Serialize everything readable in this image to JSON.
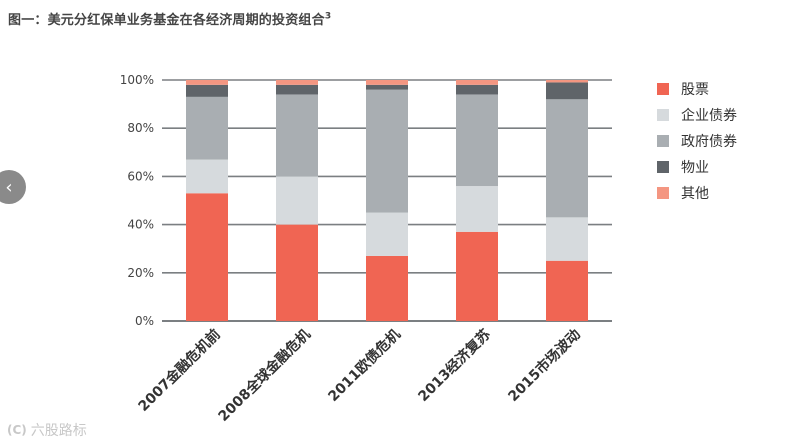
{
  "title": {
    "text": "图一：美元分红保单业务基金在各经济周期的投资组合",
    "sup": "3"
  },
  "colors": {
    "stocks": "#f06553",
    "corp_bonds": "#d6dadd",
    "gov_bonds": "#a9aeb2",
    "property": "#5f6469",
    "other": "#f49681",
    "gridline": "#7b7f82",
    "axis_text": "#444444"
  },
  "legend": [
    {
      "label": "股票",
      "color": "#f06553"
    },
    {
      "label": "企业债券",
      "color": "#d6dadd"
    },
    {
      "label": "政府债券",
      "color": "#a9aeb2"
    },
    {
      "label": "物业",
      "color": "#5f6469"
    },
    {
      "label": "其他",
      "color": "#f49681"
    }
  ],
  "nav": {
    "prev_icon": "‹"
  },
  "watermark": {
    "logo": "(C)",
    "text": "六股路标"
  },
  "chart_data": {
    "type": "bar",
    "stacked": true,
    "categories": [
      "2007金融危机前",
      "2008全球金融危机",
      "2011欧债危机",
      "2013经济复苏",
      "2015市场波动"
    ],
    "series": [
      {
        "name": "股票",
        "color": "#f06553",
        "values": [
          53,
          40,
          27,
          37,
          25
        ]
      },
      {
        "name": "企业债券",
        "color": "#d6dadd",
        "values": [
          14,
          20,
          18,
          19,
          18
        ]
      },
      {
        "name": "政府债券",
        "color": "#a9aeb2",
        "values": [
          26,
          34,
          51,
          38,
          49
        ]
      },
      {
        "name": "物业",
        "color": "#5f6469",
        "values": [
          5,
          4,
          2,
          4,
          7
        ]
      },
      {
        "name": "其他",
        "color": "#f49681",
        "values": [
          2,
          2,
          2,
          2,
          1
        ]
      }
    ],
    "ylim": [
      0,
      100
    ],
    "yticks": [
      0,
      20,
      40,
      60,
      80,
      100
    ],
    "ytick_labels": [
      "0%",
      "20%",
      "40%",
      "60%",
      "80%",
      "100%"
    ],
    "grid": true,
    "legend_position": "right"
  }
}
